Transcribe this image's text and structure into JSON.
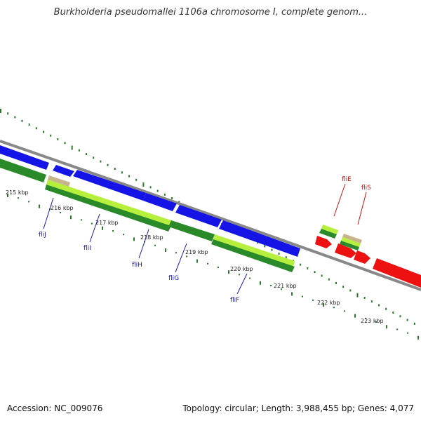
{
  "title": "Burkholderia pseudomallei 1106a chromosome I, complete genom...",
  "accession": "Accession: NC_009076",
  "summary": "Topology: circular; Length: 3,988,455 bp; Genes: 4,077",
  "colors": {
    "backbone": "#888888",
    "forward_cds": "#1414e6",
    "reverse_cds": "#2a8a2a",
    "light_green": "#b6f03c",
    "tan": "#c8b48c",
    "red_cds": "#ee1111",
    "ticks": "#2a7a2a",
    "label_blue": "#1a1ab4",
    "label_red": "#cc1111"
  },
  "scale_labels": [
    "215 kbp",
    "216 kbp",
    "217 kbp",
    "218 kbp",
    "219 kbp",
    "220 kbp",
    "221 kbp",
    "222 kbp",
    "223 kbp"
  ],
  "gene_labels": [
    {
      "name": "fliJ",
      "color": "blue"
    },
    {
      "name": "fliI",
      "color": "blue"
    },
    {
      "name": "fliH",
      "color": "blue"
    },
    {
      "name": "fliG",
      "color": "blue"
    },
    {
      "name": "fliF",
      "color": "blue"
    },
    {
      "name": "fliE",
      "color": "red"
    },
    {
      "name": "fliS",
      "color": "red"
    }
  ]
}
